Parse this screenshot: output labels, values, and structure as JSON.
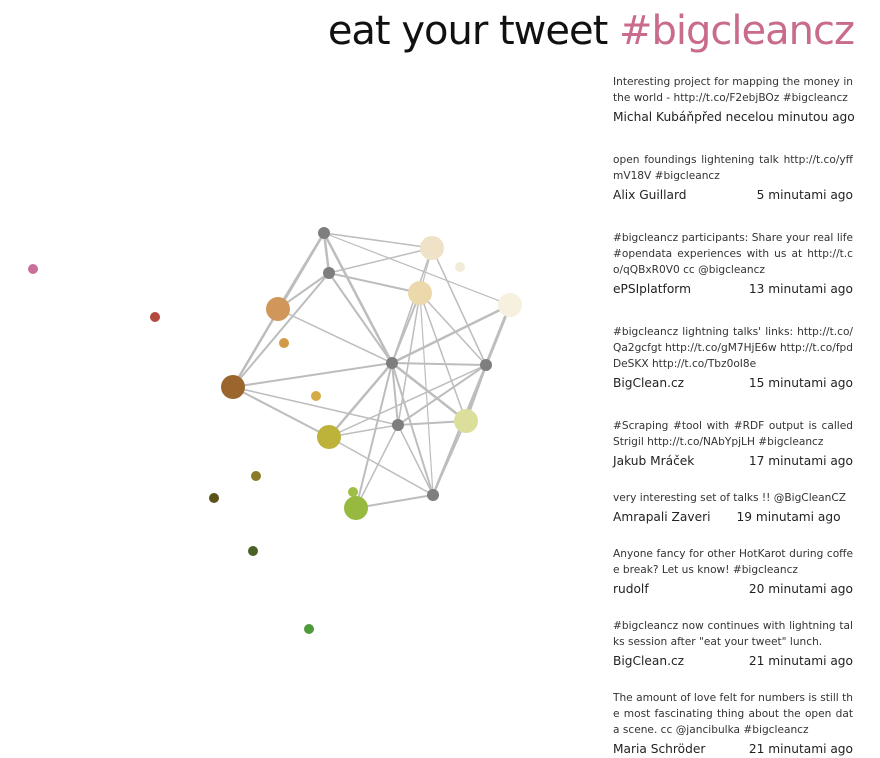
{
  "header": {
    "title_main": "eat your tweet",
    "title_hashtag": "#bigcleancz"
  },
  "colors": {
    "hashtag": "#c96b8d",
    "graph_hub": "#7e7e7e",
    "graph_edge": "#bdbdbd"
  },
  "tweets": [
    {
      "text": "Interesting project for mapping the money in the world - http://t.co/F2ebjBOz #bigcleancz",
      "author": "Michal Kubáň",
      "time": "před necelou minutou ago"
    },
    {
      "text": "open foundings lightening talk http://t.co/yffmV18V #bigcleancz",
      "author": "Alix Guillard",
      "time": "5 minutami ago"
    },
    {
      "text": "#bigcleancz participants: Share your real life #opendata experiences with us at http://t.co/qQBxR0V0 cc @bigcleancz",
      "author": "ePSIplatform",
      "time": "13 minutami ago"
    },
    {
      "text": "#bigcleancz lightning talks' links: http://t.co/Qa2gcfgt http://t.co/gM7HjE6w http://t.co/fpdDeSKX http://t.co/Tbz0oI8e",
      "author": "BigClean.cz",
      "time": "15 minutami ago"
    },
    {
      "text": "#Scraping #tool with #RDF output is called Strigil http://t.co/NAbYpjLH #bigcleancz",
      "author": "Jakub Mráček",
      "time": "17 minutami ago"
    },
    {
      "text": "very interesting set of talks !! @BigCleanCZ",
      "author": "Amrapali Zaveri",
      "time": "19 minutami ago"
    },
    {
      "text": "Anyone fancy for other HotKarot during coffee break? Let us know! #bigcleancz",
      "author": "rudolf",
      "time": "20 minutami ago"
    },
    {
      "text": "#bigcleancz now continues with lightning talks session after \"eat your tweet\" lunch.",
      "author": "BigClean.cz",
      "time": "21 minutami ago"
    },
    {
      "text": "The amount of love felt for numbers is still the most fascinating thing about the open data scene. cc @jancibulka #bigcleancz",
      "author": "Maria Schröder",
      "time": "21 minutami ago"
    }
  ]
}
